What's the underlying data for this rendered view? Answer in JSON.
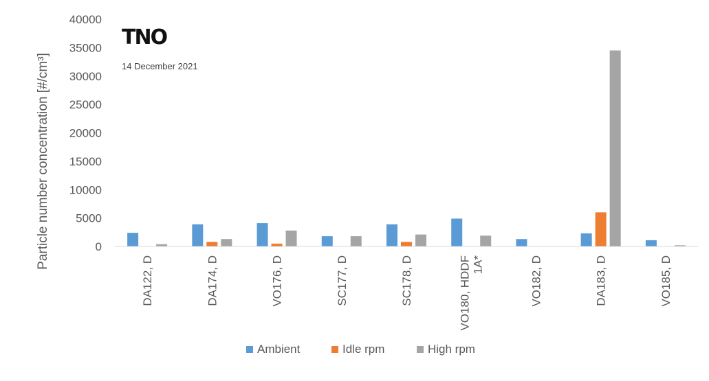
{
  "brand": {
    "logo": "TNO",
    "date": "14 December 2021"
  },
  "colors": {
    "ambient": "#5B9BD5",
    "idle": "#ED7D31",
    "high": "#A5A5A5",
    "axis": "#D9D9D9",
    "text": "#595959"
  },
  "chart_data": {
    "type": "bar",
    "title": "",
    "xlabel": "",
    "ylabel": "Particle number concentration [#/cm³]",
    "ylim": [
      0,
      40000
    ],
    "yticks": [
      0,
      5000,
      10000,
      15000,
      20000,
      25000,
      30000,
      35000,
      40000
    ],
    "grid": false,
    "legend_position": "bottom",
    "categories": [
      "DA122, D",
      "DA174, D",
      "VO176, D",
      "SC177, D",
      "SC178, D",
      "VO180, HDDF 1A*",
      "VO182, D",
      "DA183, D",
      "VO185, D"
    ],
    "category_lines": [
      [
        "DA122, D"
      ],
      [
        "DA174, D"
      ],
      [
        "VO176, D"
      ],
      [
        "SC177, D"
      ],
      [
        "SC178, D"
      ],
      [
        "VO180, HDDF",
        "1A*"
      ],
      [
        "VO182, D"
      ],
      [
        "DA183, D"
      ],
      [
        "VO185, D"
      ]
    ],
    "series": [
      {
        "name": "Ambient",
        "color": "#5B9BD5",
        "values": [
          2400,
          3900,
          4100,
          1800,
          3900,
          4900,
          1300,
          2300,
          1100
        ]
      },
      {
        "name": "Idle rpm",
        "color": "#ED7D31",
        "values": [
          0,
          800,
          500,
          0,
          800,
          0,
          0,
          6000,
          0
        ]
      },
      {
        "name": "High rpm",
        "color": "#A5A5A5",
        "values": [
          400,
          1300,
          2800,
          1800,
          2100,
          1900,
          0,
          34500,
          200
        ]
      }
    ]
  }
}
